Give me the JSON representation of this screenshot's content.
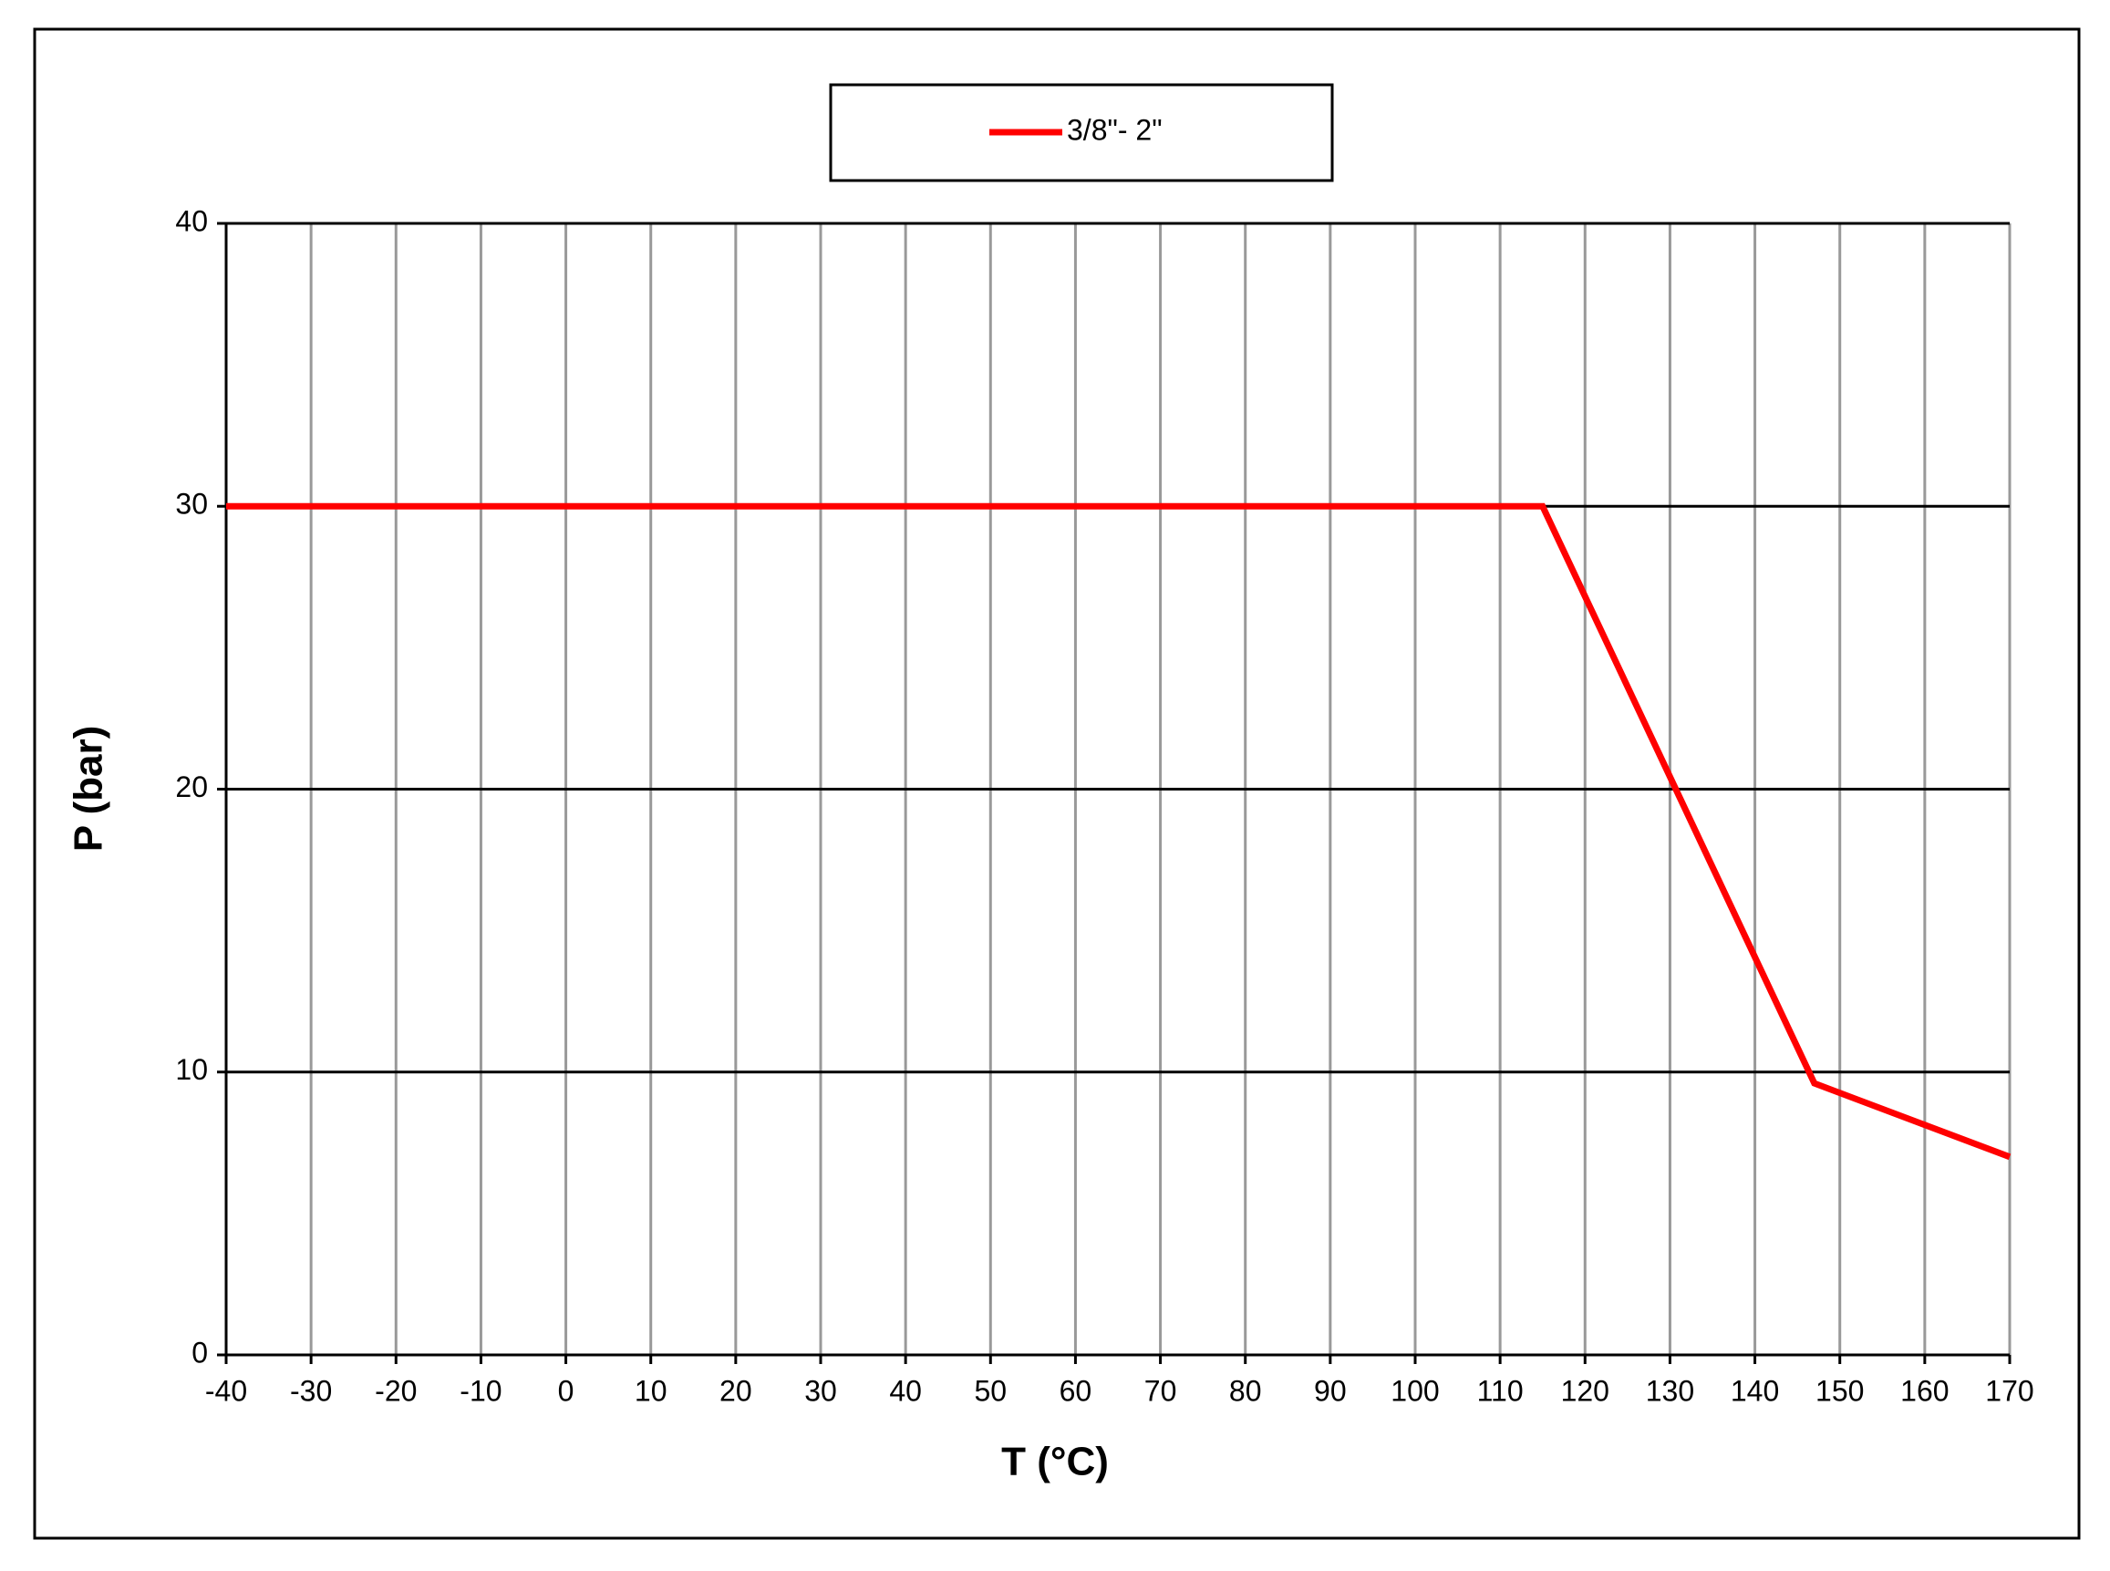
{
  "chart_data": {
    "type": "line",
    "xlabel": "T (°C)",
    "ylabel": "P (bar)",
    "series": [
      {
        "name": "3/8\"- 2\"",
        "color": "#ff0000",
        "x": [
          -40,
          115,
          147,
          170
        ],
        "values": [
          30,
          30,
          9.6,
          7
        ]
      }
    ],
    "xlim": [
      -40,
      170
    ],
    "xticks": [
      -40,
      -30,
      -20,
      -10,
      0,
      10,
      20,
      30,
      40,
      50,
      60,
      70,
      80,
      90,
      100,
      110,
      120,
      130,
      140,
      150,
      160,
      170
    ],
    "ylim": [
      0,
      40
    ],
    "yticks": [
      0,
      10,
      20,
      30,
      40
    ],
    "grid": true,
    "legend": "top"
  }
}
